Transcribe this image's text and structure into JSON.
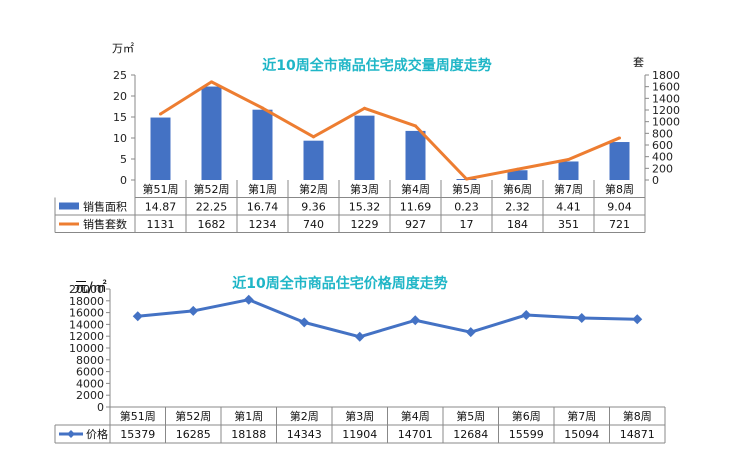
{
  "colors": {
    "bar": "#4472C4",
    "line": "#ED7D31",
    "price": "#4472C4",
    "title": "#1FB6C7",
    "grid": "#D9D9D9"
  },
  "chart_data": [
    {
      "type": "bar",
      "title": "近10周全市商品住宅成交量周度走势",
      "categories": [
        "第51周",
        "第52周",
        "第1周",
        "第2周",
        "第3周",
        "第4周",
        "第5周",
        "第6周",
        "第7周",
        "第8周"
      ],
      "y_left_unit": "万㎡",
      "y_right_unit": "套",
      "ylim_left": [
        0,
        25
      ],
      "ylim_right": [
        0,
        1800
      ],
      "yticks_left": [
        "0",
        "5",
        "10",
        "15",
        "20",
        "25"
      ],
      "yticks_right": [
        "0",
        "200",
        "400",
        "600",
        "800",
        "1000",
        "1200",
        "1400",
        "1600",
        "1800"
      ],
      "series": [
        {
          "name": "销售面积",
          "type": "bar",
          "axis": "left",
          "values": [
            14.87,
            22.25,
            16.74,
            9.36,
            15.32,
            11.69,
            0.23,
            2.32,
            4.41,
            9.04
          ],
          "labels": [
            "14.87",
            "22.25",
            "16.74",
            "9.36",
            "15.32",
            "11.69",
            "0.23",
            "2.32",
            "4.41",
            "9.04"
          ]
        },
        {
          "name": "销售套数",
          "type": "line",
          "axis": "right",
          "values": [
            1131,
            1682,
            1234,
            740,
            1229,
            927,
            17,
            184,
            351,
            721
          ],
          "labels": [
            "1131",
            "1682",
            "1234",
            "740",
            "1229",
            "927",
            "17",
            "184",
            "351",
            "721"
          ]
        }
      ],
      "legend": "table-below"
    },
    {
      "type": "line",
      "title": "近10周全市商品住宅价格周度走势",
      "categories": [
        "第51周",
        "第52周",
        "第1周",
        "第2周",
        "第3周",
        "第4周",
        "第5周",
        "第6周",
        "第7周",
        "第8周"
      ],
      "y_unit": "元/㎡",
      "ylim": [
        0,
        20000
      ],
      "yticks": [
        "0",
        "2000",
        "4000",
        "6000",
        "8000",
        "10000",
        "12000",
        "14000",
        "16000",
        "18000",
        "20000"
      ],
      "series": [
        {
          "name": "价格",
          "values": [
            15379,
            16285,
            18188,
            14343,
            11904,
            14701,
            12684,
            15599,
            15094,
            14871
          ],
          "labels": [
            "15379",
            "16285",
            "18188",
            "14343",
            "11904",
            "14701",
            "12684",
            "15599",
            "15094",
            "14871"
          ]
        }
      ],
      "legend": "table-below"
    }
  ]
}
